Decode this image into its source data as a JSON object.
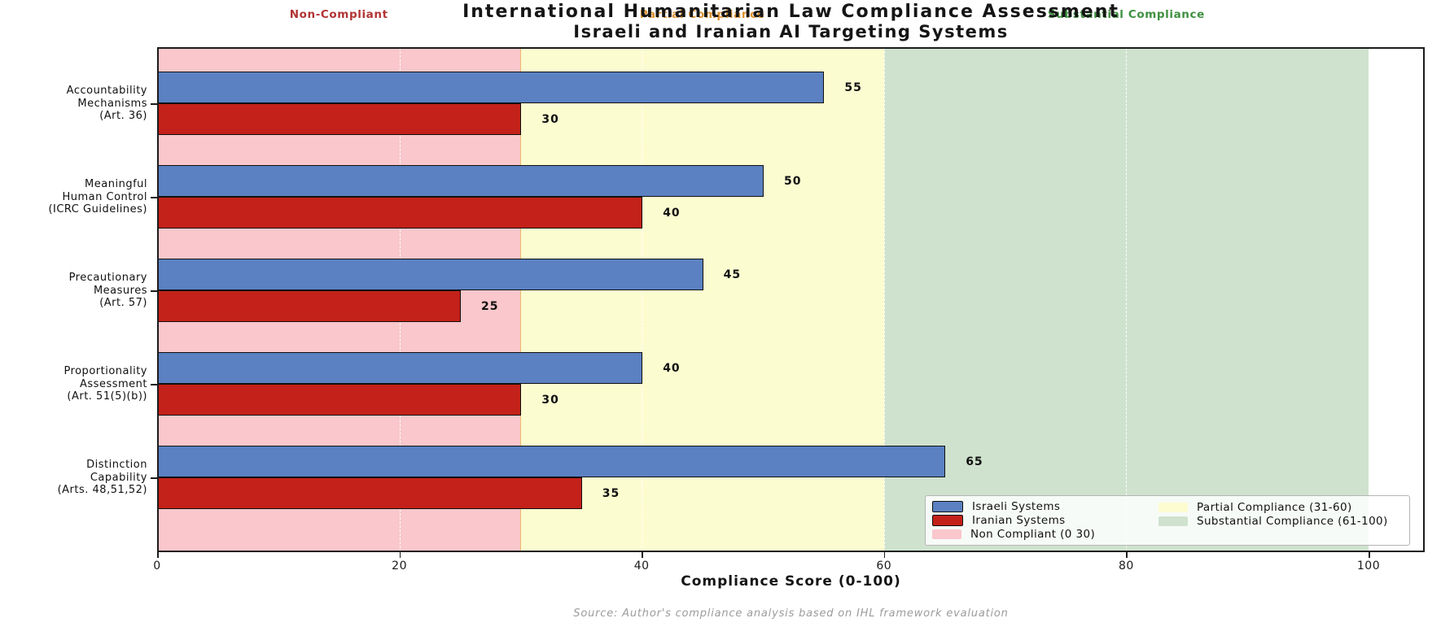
{
  "chart_data": {
    "type": "bar",
    "orientation": "horizontal",
    "title": "International Humanitarian Law Compliance Assessment",
    "subtitle": "Israeli and Iranian AI Targeting Systems",
    "xlabel": "Compliance Score (0-100)",
    "xlim": [
      0,
      104.6
    ],
    "xticks": [
      0,
      20,
      40,
      60,
      80,
      100
    ],
    "grid": "white dashed vertical gridlines at x ticks",
    "legend_position": "lower right, two columns",
    "categories": [
      "Accountability\nMechanisms\n(Art. 36)",
      "Meaningful\nHuman Control\n(ICRC Guidelines)",
      "Precautionary\nMeasures\n(Art. 57)",
      "Proportionality\nAssessment\n(Art. 51(5)(b))",
      "Distinction\nCapability\n(Arts. 48,51,52)"
    ],
    "series": [
      {
        "name": "Israeli Systems",
        "color": "#5b81c2",
        "values": [
          55,
          50,
          45,
          40,
          65
        ]
      },
      {
        "name": "Iranian Systems",
        "color": "#c32119",
        "values": [
          30,
          40,
          25,
          30,
          35
        ]
      }
    ],
    "zones": [
      {
        "top_label": "Non-Compliant",
        "legend_label": "Non Compliant (0 30)",
        "range": [
          0,
          30
        ],
        "color": "#f9c7cc",
        "label_color": "#b23434"
      },
      {
        "top_label": "Partial Compliance",
        "legend_label": "Partial Compliance (31-60)",
        "range": [
          30,
          60
        ],
        "color": "#fcfcd1",
        "label_color": "#e0922f"
      },
      {
        "top_label": "Substantial Compliance",
        "legend_label": "Substantial Compliance (61-100)",
        "range": [
          60,
          100
        ],
        "color": "#cfe2ce",
        "label_color": "#3f9040"
      }
    ],
    "value_labels": true,
    "source": "Source: Author's compliance analysis based on IHL framework evaluation"
  }
}
